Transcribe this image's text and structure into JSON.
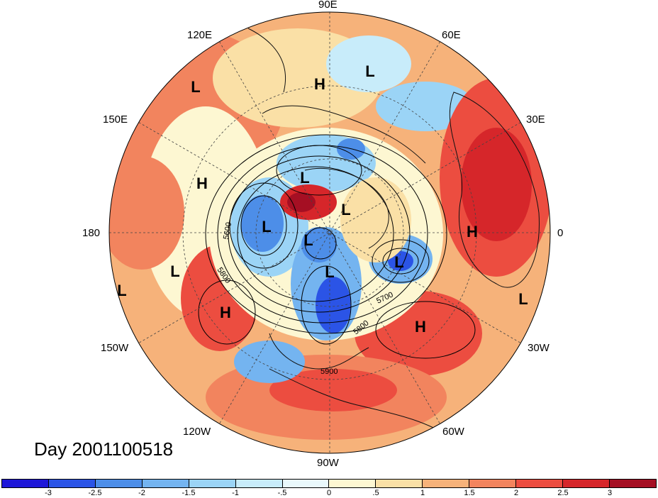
{
  "title": "Day 2001100518",
  "longitude_labels": {
    "deg90e": "90E",
    "deg120e": "120E",
    "deg60e": "60E",
    "deg150e": "150E",
    "deg30e": "30E",
    "deg180": "180",
    "deg0": "0",
    "deg150w": "150W",
    "deg30w": "30W",
    "deg120w": "120W",
    "deg60w": "60W",
    "deg90w": "90W"
  },
  "pressure_systems": [
    "L",
    "H",
    "L",
    "L",
    "H",
    "L",
    "L",
    "L",
    "H",
    "L",
    "L",
    "L",
    "H",
    "L",
    "H",
    "L"
  ],
  "contour_labels": [
    "5600",
    "5700",
    "5800",
    "5800",
    "5900"
  ],
  "colorbar": {
    "tick_labels": [
      "-3",
      "-2.5",
      "-2",
      "-1.5",
      "-1",
      "-.5",
      "0",
      ".5",
      "1",
      "1.5",
      "2",
      "2.5",
      "3"
    ],
    "colors": [
      "#1e17d8",
      "#2b54e6",
      "#4d8ee8",
      "#74b4f0",
      "#9bd4f6",
      "#c8ecfa",
      "#e9f8fb",
      "#fdf7d2",
      "#fae0a6",
      "#f6b27a",
      "#f2845e",
      "#ec4d40",
      "#d6262a",
      "#a50f23"
    ]
  }
}
